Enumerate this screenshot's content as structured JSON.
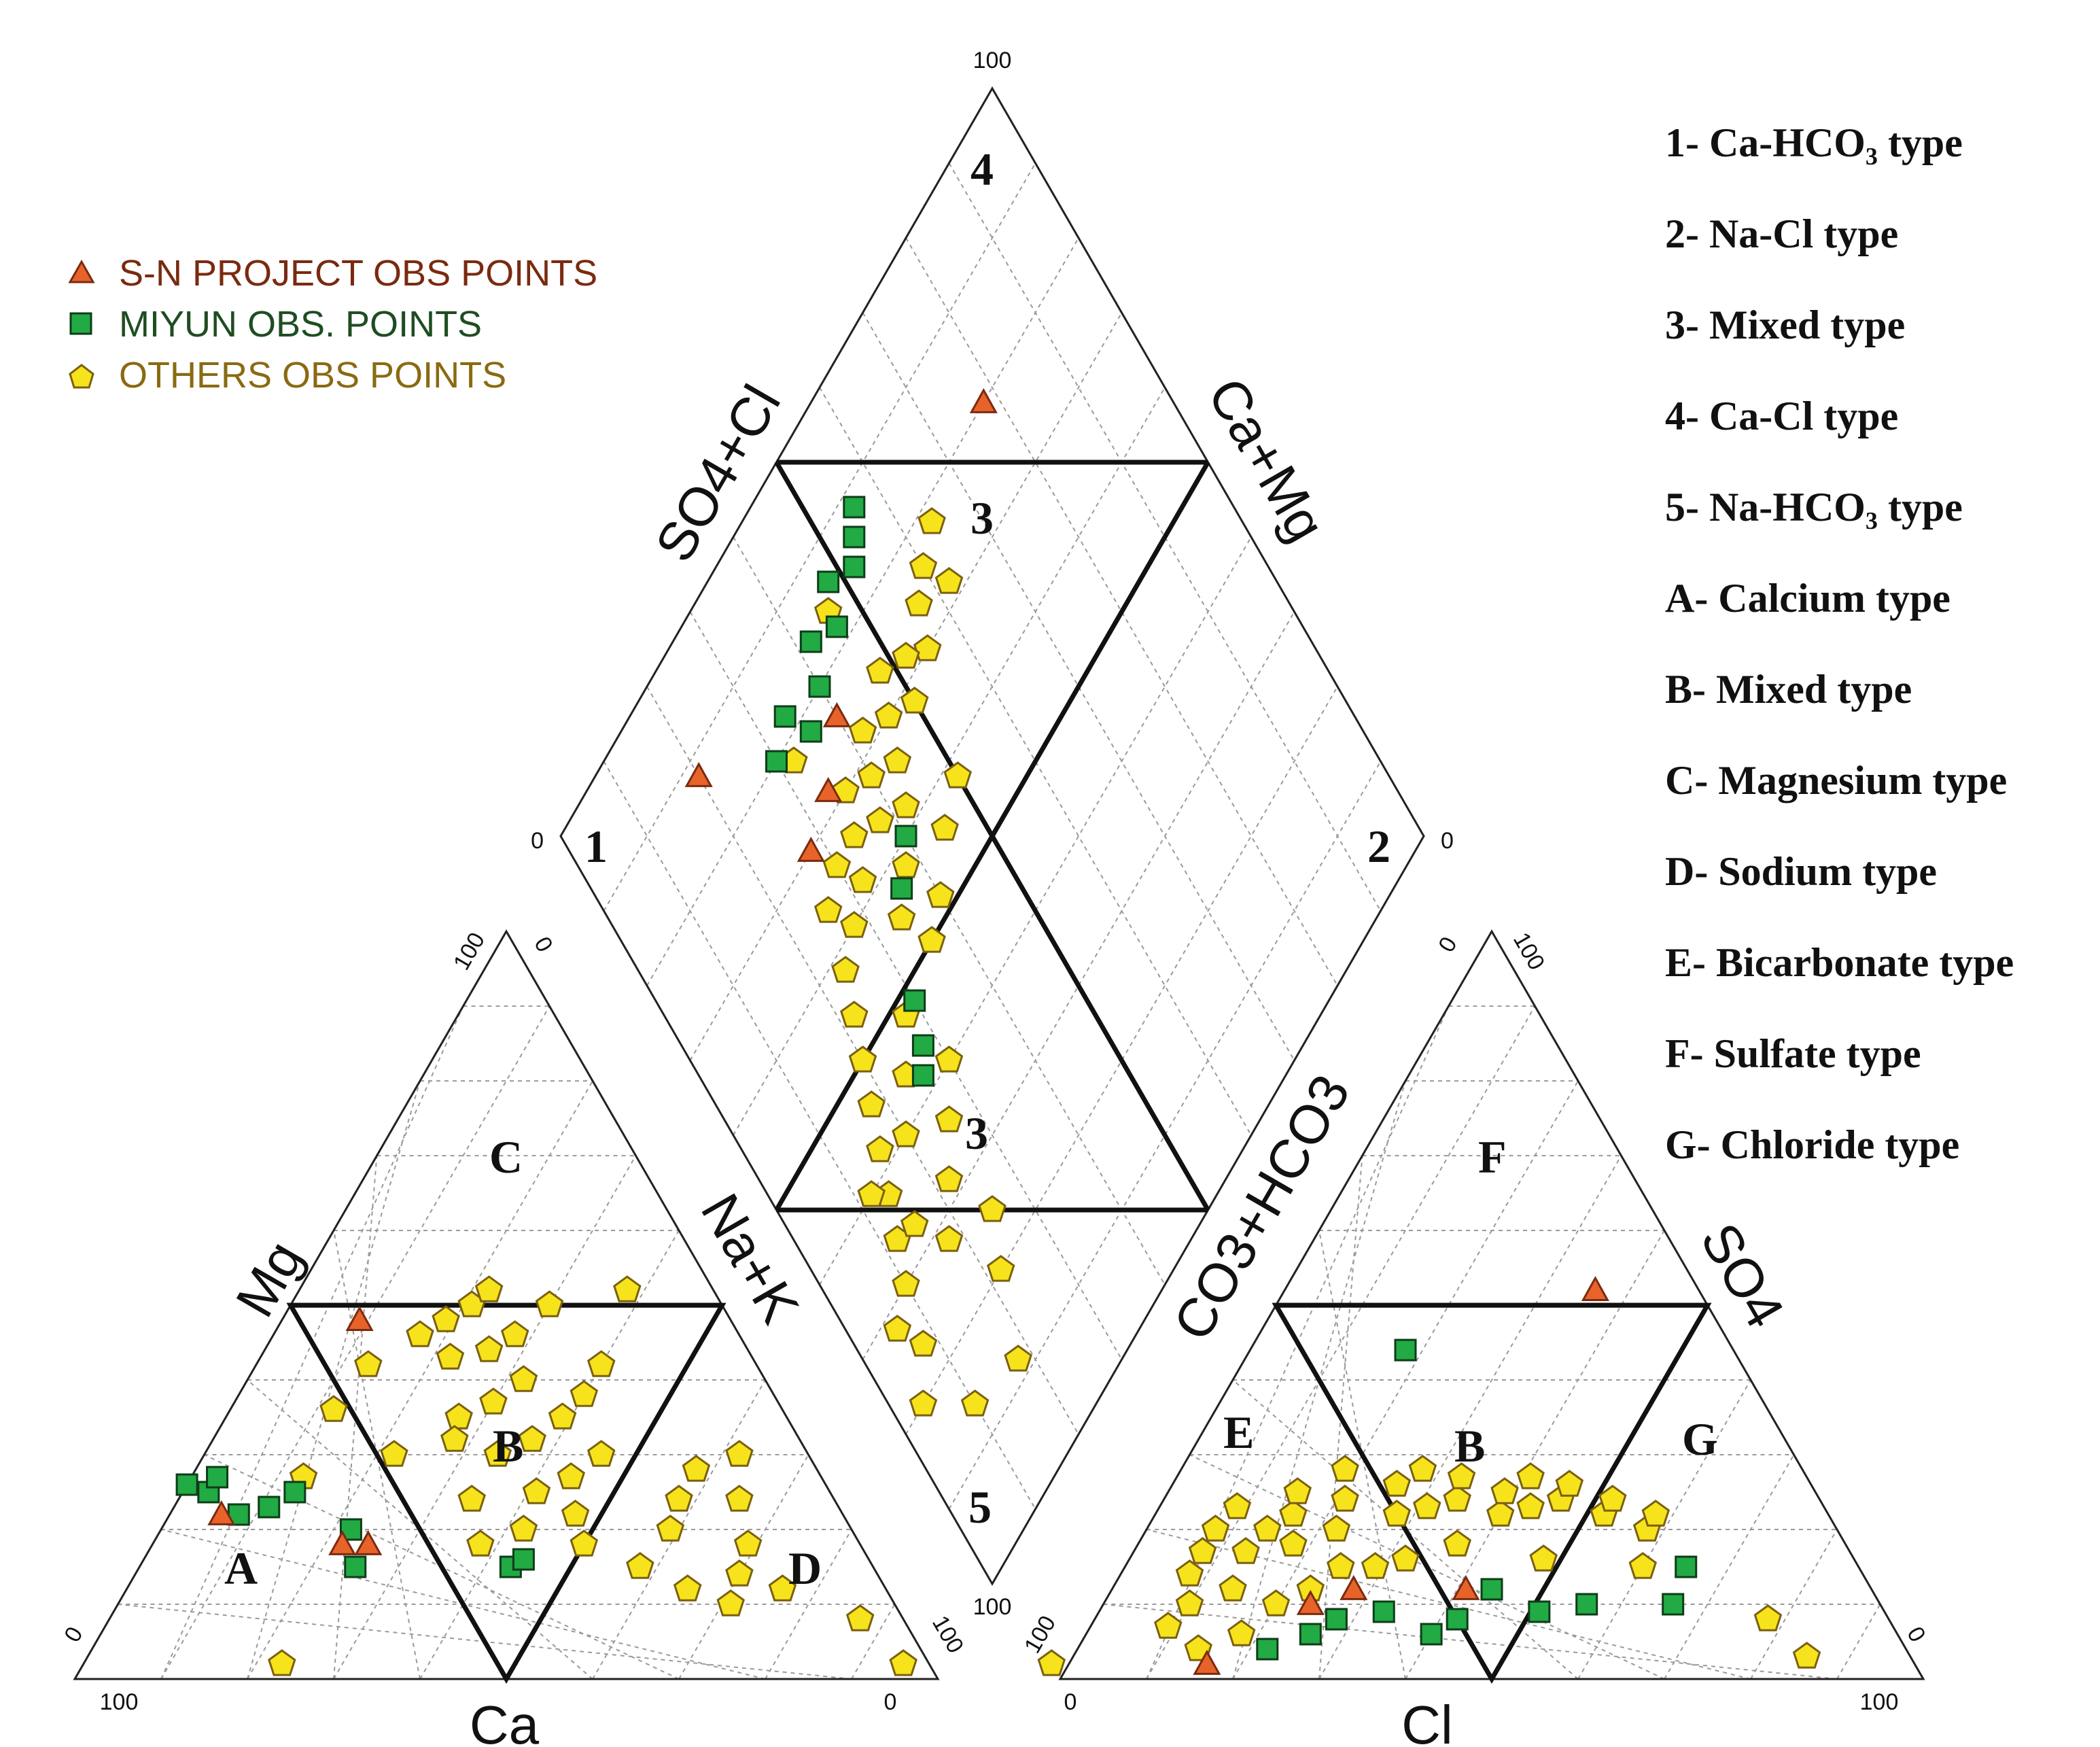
{
  "chart_data": {
    "type": "scatter",
    "title": "",
    "subtitle": "",
    "colors": {
      "sn_project": "#e8632a",
      "miyun": "#22aa44",
      "others": "#f7e31c",
      "sn_text": "#7a2a10",
      "miyun_text": "#1f4d22",
      "others_text": "#8a6a12"
    },
    "legend": {
      "placement": "top-left",
      "entries": [
        {
          "key": "sn_project",
          "label": "S-N PROJECT OBS POINTS",
          "marker": "triangle"
        },
        {
          "key": "miyun",
          "label": "MIYUN OBS. POINTS",
          "marker": "square"
        },
        {
          "key": "others",
          "label": "OTHERS OBS POINTS",
          "marker": "pentagon"
        }
      ]
    },
    "type_key": [
      "1- Ca-HCO₃ type",
      "2- Na-Cl type",
      "3- Mixed type",
      "4- Ca-Cl type",
      "5- Na-HCO₃ type",
      "A- Calcium type",
      "B- Mixed type",
      "C- Magnesium type",
      "D- Sodium type",
      "E- Bicarbonate type",
      "F- Sulfate type",
      "G- Chloride type"
    ],
    "axes": {
      "cation_bottom": "Ca",
      "cation_left": "Mg",
      "cation_right": "Na+K",
      "anion_bottom": "Cl",
      "anion_left": "CO3+HCO3",
      "anion_right": "SO4",
      "diamond_left": "SO4+Cl",
      "diamond_right": "Ca+Mg"
    },
    "ticks": {
      "cation_left_bottom_0": "0",
      "cation_left_bottom_100": "100",
      "cation_apex_100": "100",
      "cation_apex_0": "0",
      "cation_right_0": "0",
      "cation_right_100": "100",
      "anion_bottom_0": "0",
      "anion_bottom_100": "100",
      "anion_left_100": "100",
      "anion_apex_0": "0",
      "anion_apex_100": "100",
      "anion_right_0": "0",
      "diamond_top": "100",
      "diamond_left": "0",
      "diamond_right": "0",
      "diamond_bottom": "100"
    },
    "zone_labels": {
      "d1": "1",
      "d2": "2",
      "d3a": "3",
      "d3b": "3",
      "d4": "4",
      "d5": "5",
      "cA": "A",
      "cB": "B",
      "cC": "C",
      "cD": "D",
      "aE": "E",
      "aB": "B",
      "aF": "F",
      "aG": "G"
    },
    "grid": true,
    "grid_step_percent": 10,
    "cation_units": "% meq/L (Ca, Mg, Na+K)",
    "anion_units": "% meq/L (HCO3+CO3, SO4, Cl)",
    "cation_points": [
      {
        "s": "others",
        "ca": 37,
        "mg": 46,
        "na": 17
      },
      {
        "s": "others",
        "ca": 33,
        "mg": 48,
        "na": 19
      },
      {
        "s": "others",
        "ca": 29,
        "mg": 50,
        "na": 21
      },
      {
        "s": "others",
        "ca": 35,
        "mg": 43,
        "na": 22
      },
      {
        "s": "others",
        "ca": 30,
        "mg": 44,
        "na": 26
      },
      {
        "s": "others",
        "ca": 26,
        "mg": 46,
        "na": 28
      },
      {
        "s": "others",
        "ca": 28,
        "mg": 40,
        "na": 32
      },
      {
        "s": "others",
        "ca": 33,
        "mg": 37,
        "na": 30
      },
      {
        "s": "others",
        "ca": 38,
        "mg": 35,
        "na": 27
      },
      {
        "s": "others",
        "ca": 40,
        "mg": 32,
        "na": 28
      },
      {
        "s": "others",
        "ca": 36,
        "mg": 30,
        "na": 34
      },
      {
        "s": "others",
        "ca": 31,
        "mg": 32,
        "na": 37
      },
      {
        "s": "others",
        "ca": 26,
        "mg": 35,
        "na": 39
      },
      {
        "s": "others",
        "ca": 22,
        "mg": 38,
        "na": 40
      },
      {
        "s": "others",
        "ca": 24,
        "mg": 30,
        "na": 46
      },
      {
        "s": "others",
        "ca": 29,
        "mg": 27,
        "na": 44
      },
      {
        "s": "others",
        "ca": 34,
        "mg": 25,
        "na": 41
      },
      {
        "s": "others",
        "ca": 42,
        "mg": 24,
        "na": 34
      },
      {
        "s": "others",
        "ca": 38,
        "mg": 20,
        "na": 42
      },
      {
        "s": "others",
        "ca": 32,
        "mg": 18,
        "na": 50
      },
      {
        "s": "others",
        "ca": 27,
        "mg": 15,
        "na": 58
      },
      {
        "s": "others",
        "ca": 23,
        "mg": 12,
        "na": 65
      },
      {
        "s": "others",
        "ca": 19,
        "mg": 10,
        "na": 71
      },
      {
        "s": "others",
        "ca": 16,
        "mg": 14,
        "na": 70
      },
      {
        "s": "others",
        "ca": 13,
        "mg": 18,
        "na": 69
      },
      {
        "s": "others",
        "ca": 11,
        "mg": 24,
        "na": 65
      },
      {
        "s": "others",
        "ca": 8,
        "mg": 30,
        "na": 62
      },
      {
        "s": "others",
        "ca": 14,
        "mg": 28,
        "na": 58
      },
      {
        "s": "others",
        "ca": 18,
        "mg": 24,
        "na": 58
      },
      {
        "s": "others",
        "ca": 21,
        "mg": 20,
        "na": 59
      },
      {
        "s": "others",
        "ca": 12,
        "mg": 12,
        "na": 76
      },
      {
        "s": "others",
        "ca": 5,
        "mg": 8,
        "na": 87
      },
      {
        "s": "others",
        "ca": 3,
        "mg": 2,
        "na": 95
      },
      {
        "s": "others",
        "ca": 75,
        "mg": 2,
        "na": 23
      },
      {
        "s": "others",
        "ca": 45,
        "mg": 42,
        "na": 13
      },
      {
        "s": "others",
        "ca": 48,
        "mg": 30,
        "na": 22
      },
      {
        "s": "others",
        "ca": 52,
        "mg": 36,
        "na": 12
      },
      {
        "s": "others",
        "ca": 26,
        "mg": 52,
        "na": 22
      },
      {
        "s": "others",
        "ca": 20,
        "mg": 50,
        "na": 30
      },
      {
        "s": "others",
        "ca": 44,
        "mg": 18,
        "na": 38
      },
      {
        "s": "others",
        "ca": 10,
        "mg": 52,
        "na": 38
      },
      {
        "s": "others",
        "ca": 18,
        "mg": 42,
        "na": 40
      },
      {
        "s": "others",
        "ca": 60,
        "mg": 27,
        "na": 13
      },
      {
        "s": "others",
        "ca": 31,
        "mg": 22,
        "na": 47
      },
      {
        "s": "miyun",
        "ca": 74,
        "mg": 26,
        "na": 0
      },
      {
        "s": "miyun",
        "ca": 72,
        "mg": 25,
        "na": 3
      },
      {
        "s": "miyun",
        "ca": 70,
        "mg": 22,
        "na": 8
      },
      {
        "s": "miyun",
        "ca": 66,
        "mg": 23,
        "na": 11
      },
      {
        "s": "miyun",
        "ca": 62,
        "mg": 25,
        "na": 13
      },
      {
        "s": "miyun",
        "ca": 58,
        "mg": 20,
        "na": 22
      },
      {
        "s": "miyun",
        "ca": 60,
        "mg": 15,
        "na": 25
      },
      {
        "s": "miyun",
        "ca": 42,
        "mg": 15,
        "na": 43
      },
      {
        "s": "miyun",
        "ca": 40,
        "mg": 16,
        "na": 44
      },
      {
        "s": "miyun",
        "ca": 70,
        "mg": 27,
        "na": 3
      },
      {
        "s": "sn_project",
        "ca": 72,
        "mg": 22,
        "na": 6
      },
      {
        "s": "sn_project",
        "ca": 60,
        "mg": 18,
        "na": 22
      },
      {
        "s": "sn_project",
        "ca": 57,
        "mg": 18,
        "na": 25
      },
      {
        "s": "sn_project",
        "ca": 43,
        "mg": 48,
        "na": 9
      }
    ],
    "anion_points": [
      {
        "s": "others",
        "hco3": 84,
        "so4": 7,
        "cl": 9
      },
      {
        "s": "others",
        "hco3": 80,
        "so4": 10,
        "cl": 10
      },
      {
        "s": "others",
        "hco3": 78,
        "so4": 14,
        "cl": 8
      },
      {
        "s": "others",
        "hco3": 75,
        "so4": 17,
        "cl": 8
      },
      {
        "s": "others",
        "hco3": 72,
        "so4": 20,
        "cl": 8
      },
      {
        "s": "others",
        "hco3": 70,
        "so4": 17,
        "cl": 13
      },
      {
        "s": "others",
        "hco3": 66,
        "so4": 20,
        "cl": 14
      },
      {
        "s": "others",
        "hco3": 68,
        "so4": 23,
        "cl": 9
      },
      {
        "s": "others",
        "hco3": 62,
        "so4": 22,
        "cl": 16
      },
      {
        "s": "others",
        "hco3": 64,
        "so4": 18,
        "cl": 18
      },
      {
        "s": "others",
        "hco3": 60,
        "so4": 25,
        "cl": 15
      },
      {
        "s": "others",
        "hco3": 58,
        "so4": 20,
        "cl": 22
      },
      {
        "s": "others",
        "hco3": 55,
        "so4": 24,
        "cl": 21
      },
      {
        "s": "others",
        "hco3": 53,
        "so4": 28,
        "cl": 19
      },
      {
        "s": "others",
        "hco3": 50,
        "so4": 22,
        "cl": 28
      },
      {
        "s": "others",
        "hco3": 48,
        "so4": 26,
        "cl": 26
      },
      {
        "s": "others",
        "hco3": 46,
        "so4": 23,
        "cl": 31
      },
      {
        "s": "others",
        "hco3": 44,
        "so4": 28,
        "cl": 28
      },
      {
        "s": "others",
        "hco3": 42,
        "so4": 24,
        "cl": 34
      },
      {
        "s": "others",
        "hco3": 40,
        "so4": 27,
        "cl": 33
      },
      {
        "s": "others",
        "hco3": 38,
        "so4": 22,
        "cl": 40
      },
      {
        "s": "others",
        "hco3": 36,
        "so4": 25,
        "cl": 39
      },
      {
        "s": "others",
        "hco3": 34,
        "so4": 23,
        "cl": 43
      },
      {
        "s": "others",
        "hco3": 32,
        "so4": 27,
        "cl": 41
      },
      {
        "s": "others",
        "hco3": 30,
        "so4": 24,
        "cl": 46
      },
      {
        "s": "others",
        "hco3": 28,
        "so4": 26,
        "cl": 46
      },
      {
        "s": "others",
        "hco3": 26,
        "so4": 22,
        "cl": 52
      },
      {
        "s": "others",
        "hco3": 24,
        "so4": 24,
        "cl": 52
      },
      {
        "s": "others",
        "hco3": 22,
        "so4": 20,
        "cl": 58
      },
      {
        "s": "others",
        "hco3": 20,
        "so4": 22,
        "cl": 58
      },
      {
        "s": "others",
        "hco3": 56,
        "so4": 15,
        "cl": 29
      },
      {
        "s": "others",
        "hco3": 52,
        "so4": 16,
        "cl": 32
      },
      {
        "s": "others",
        "hco3": 65,
        "so4": 12,
        "cl": 23
      },
      {
        "s": "others",
        "hco3": 70,
        "so4": 10,
        "cl": 20
      },
      {
        "s": "others",
        "hco3": 74,
        "so4": 12,
        "cl": 14
      },
      {
        "s": "others",
        "hco3": 60,
        "so4": 15,
        "cl": 25
      },
      {
        "s": "others",
        "hco3": 45,
        "so4": 18,
        "cl": 37
      },
      {
        "s": "others",
        "hco3": 36,
        "so4": 16,
        "cl": 48
      },
      {
        "s": "others",
        "hco3": 25,
        "so4": 15,
        "cl": 60
      },
      {
        "s": "others",
        "hco3": 14,
        "so4": 8,
        "cl": 78
      },
      {
        "s": "others",
        "hco3": 12,
        "so4": 3,
        "cl": 85
      },
      {
        "s": "others",
        "hco3": 100,
        "so4": 2,
        "cl": -2
      },
      {
        "s": "others",
        "hco3": 82,
        "so4": 4,
        "cl": 14
      },
      {
        "s": "others",
        "hco3": 76,
        "so4": 6,
        "cl": 18
      },
      {
        "s": "miyun",
        "hco3": 74,
        "so4": 4,
        "cl": 22
      },
      {
        "s": "miyun",
        "hco3": 68,
        "so4": 6,
        "cl": 26
      },
      {
        "s": "miyun",
        "hco3": 64,
        "so4": 8,
        "cl": 28
      },
      {
        "s": "miyun",
        "hco3": 58,
        "so4": 9,
        "cl": 33
      },
      {
        "s": "miyun",
        "hco3": 54,
        "so4": 6,
        "cl": 40
      },
      {
        "s": "miyun",
        "hco3": 50,
        "so4": 8,
        "cl": 42
      },
      {
        "s": "miyun",
        "hco3": 44,
        "so4": 12,
        "cl": 44
      },
      {
        "s": "miyun",
        "hco3": 40,
        "so4": 9,
        "cl": 51
      },
      {
        "s": "miyun",
        "hco3": 34,
        "so4": 10,
        "cl": 56
      },
      {
        "s": "miyun",
        "hco3": 24,
        "so4": 10,
        "cl": 66
      },
      {
        "s": "miyun",
        "hco3": 20,
        "so4": 15,
        "cl": 65
      },
      {
        "s": "miyun",
        "hco3": 38,
        "so4": 44,
        "cl": 18
      },
      {
        "s": "sn_project",
        "hco3": 82,
        "so4": 2,
        "cl": 16
      },
      {
        "s": "sn_project",
        "hco3": 66,
        "so4": 10,
        "cl": 24
      },
      {
        "s": "sn_project",
        "hco3": 60,
        "so4": 12,
        "cl": 28
      },
      {
        "s": "sn_project",
        "hco3": 47,
        "so4": 12,
        "cl": 41
      },
      {
        "s": "sn_project",
        "hco3": 12,
        "so4": 52,
        "cl": 36
      }
    ],
    "diamond_points": [
      {
        "s": "others",
        "so4cl": 64,
        "camg": 78
      },
      {
        "s": "others",
        "so4cl": 60,
        "camg": 76
      },
      {
        "s": "others",
        "so4cl": 62,
        "camg": 72
      },
      {
        "s": "others",
        "so4cl": 57,
        "camg": 74
      },
      {
        "s": "others",
        "so4cl": 55,
        "camg": 70
      },
      {
        "s": "others",
        "so4cl": 52,
        "camg": 72
      },
      {
        "s": "others",
        "so4cl": 50,
        "camg": 68
      },
      {
        "s": "others",
        "so4cl": 48,
        "camg": 74
      },
      {
        "s": "others",
        "so4cl": 46,
        "camg": 70
      },
      {
        "s": "others",
        "so4cl": 44,
        "camg": 66
      },
      {
        "s": "others",
        "so4cl": 42,
        "camg": 72
      },
      {
        "s": "others",
        "so4cl": 40,
        "camg": 68
      },
      {
        "s": "others",
        "so4cl": 38,
        "camg": 64
      },
      {
        "s": "others",
        "so4cl": 36,
        "camg": 70
      },
      {
        "s": "others",
        "so4cl": 34,
        "camg": 66
      },
      {
        "s": "others",
        "so4cl": 32,
        "camg": 62
      },
      {
        "s": "others",
        "so4cl": 30,
        "camg": 66
      },
      {
        "s": "others",
        "so4cl": 28,
        "camg": 60
      },
      {
        "s": "others",
        "so4cl": 26,
        "camg": 64
      },
      {
        "s": "others",
        "so4cl": 24,
        "camg": 58
      },
      {
        "s": "others",
        "so4cl": 22,
        "camg": 54
      },
      {
        "s": "others",
        "so4cl": 20,
        "camg": 50
      },
      {
        "s": "others",
        "so4cl": 18,
        "camg": 46
      },
      {
        "s": "others",
        "so4cl": 16,
        "camg": 42
      },
      {
        "s": "others",
        "so4cl": 14,
        "camg": 38
      },
      {
        "s": "others",
        "so4cl": 12,
        "camg": 34
      },
      {
        "s": "others",
        "so4cl": 10,
        "camg": 30
      },
      {
        "s": "others",
        "so4cl": 8,
        "camg": 24
      },
      {
        "s": "others",
        "so4cl": 6,
        "camg": 28
      },
      {
        "s": "others",
        "so4cl": 4,
        "camg": 20
      },
      {
        "s": "others",
        "so4cl": 20,
        "camg": 40
      },
      {
        "s": "others",
        "so4cl": 24,
        "camg": 44
      },
      {
        "s": "others",
        "so4cl": 28,
        "camg": 48
      },
      {
        "s": "others",
        "so4cl": 30,
        "camg": 40
      },
      {
        "s": "others",
        "so4cl": 26,
        "camg": 36
      },
      {
        "s": "others",
        "so4cl": 22,
        "camg": 32
      },
      {
        "s": "others",
        "so4cl": 18,
        "camg": 28
      },
      {
        "s": "others",
        "so4cl": 15,
        "camg": 33
      },
      {
        "s": "others",
        "so4cl": 12,
        "camg": 40
      },
      {
        "s": "others",
        "so4cl": 34,
        "camg": 55
      },
      {
        "s": "others",
        "so4cl": 38,
        "camg": 58
      },
      {
        "s": "others",
        "so4cl": 42,
        "camg": 62
      },
      {
        "s": "others",
        "so4cl": 36,
        "camg": 50
      },
      {
        "s": "others",
        "so4cl": 40,
        "camg": 52
      },
      {
        "s": "others",
        "so4cl": 45,
        "camg": 56
      },
      {
        "s": "others",
        "so4cl": 50,
        "camg": 58
      },
      {
        "s": "others",
        "so4cl": 18,
        "camg": 12
      },
      {
        "s": "others",
        "so4cl": 10,
        "camg": 14
      },
      {
        "s": "others",
        "so4cl": 22,
        "camg": 20
      },
      {
        "s": "others",
        "so4cl": 25,
        "camg": 25
      },
      {
        "s": "others",
        "so4cl": 32,
        "camg": 78
      },
      {
        "s": "others",
        "so4cl": 46,
        "camg": 84
      },
      {
        "s": "miyun",
        "so4cl": 56,
        "camg": 88
      },
      {
        "s": "miyun",
        "so4cl": 54,
        "camg": 86
      },
      {
        "s": "miyun",
        "so4cl": 52,
        "camg": 84
      },
      {
        "s": "miyun",
        "so4cl": 48,
        "camg": 86
      },
      {
        "s": "miyun",
        "so4cl": 46,
        "camg": 82
      },
      {
        "s": "miyun",
        "so4cl": 42,
        "camg": 84
      },
      {
        "s": "miyun",
        "so4cl": 40,
        "camg": 80
      },
      {
        "s": "miyun",
        "so4cl": 36,
        "camg": 78
      },
      {
        "s": "miyun",
        "so4cl": 34,
        "camg": 82
      },
      {
        "s": "miyun",
        "so4cl": 30,
        "camg": 80
      },
      {
        "s": "miyun",
        "so4cl": 40,
        "camg": 60
      },
      {
        "s": "miyun",
        "so4cl": 36,
        "camg": 57
      },
      {
        "s": "miyun",
        "so4cl": 30,
        "camg": 48
      },
      {
        "s": "miyun",
        "so4cl": 28,
        "camg": 44
      },
      {
        "s": "miyun",
        "so4cl": 26,
        "camg": 42
      },
      {
        "s": "sn_project",
        "so4cl": 78,
        "camg": 80
      },
      {
        "s": "sn_project",
        "so4cl": 40,
        "camg": 76
      },
      {
        "s": "sn_project",
        "so4cl": 34,
        "camg": 72
      },
      {
        "s": "sn_project",
        "so4cl": 28,
        "camg": 70
      },
      {
        "s": "sn_project",
        "so4cl": 20,
        "camg": 88
      }
    ]
  }
}
